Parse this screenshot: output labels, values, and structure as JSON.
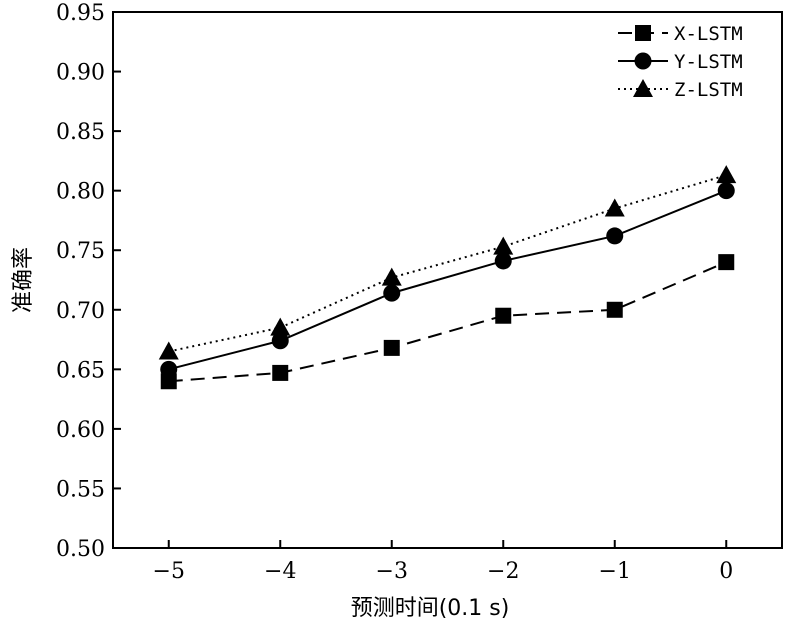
{
  "chart_data": {
    "type": "line",
    "title": "",
    "xlabel": "预测时间(0.1 s)",
    "ylabel": "准确率",
    "x": [
      -5,
      -4,
      -3,
      -2,
      -1,
      0
    ],
    "x_tick_labels": [
      "−5",
      "−4",
      "−3",
      "−2",
      "−1",
      "0"
    ],
    "xlim": [
      -5.5,
      0.5
    ],
    "ylim": [
      0.5,
      0.95
    ],
    "y_ticks": [
      0.5,
      0.55,
      0.6,
      0.65,
      0.7,
      0.75,
      0.8,
      0.85,
      0.9,
      0.95
    ],
    "y_tick_labels": [
      "0.50",
      "0.55",
      "0.60",
      "0.65",
      "0.70",
      "0.75",
      "0.80",
      "0.85",
      "0.90",
      "0.95"
    ],
    "grid": false,
    "legend_position": "top-right",
    "series": [
      {
        "name": "X-LSTM",
        "marker": "square",
        "line": "dashed",
        "values": [
          0.64,
          0.647,
          0.668,
          0.695,
          0.7,
          0.74
        ]
      },
      {
        "name": "Y-LSTM",
        "marker": "circle",
        "line": "solid",
        "values": [
          0.65,
          0.674,
          0.714,
          0.741,
          0.762,
          0.8
        ]
      },
      {
        "name": "Z-LSTM",
        "marker": "triangle",
        "line": "dotted",
        "values": [
          0.665,
          0.685,
          0.727,
          0.753,
          0.785,
          0.813
        ]
      }
    ],
    "colors": {
      "line": "#000000",
      "background": "#ffffff"
    }
  }
}
